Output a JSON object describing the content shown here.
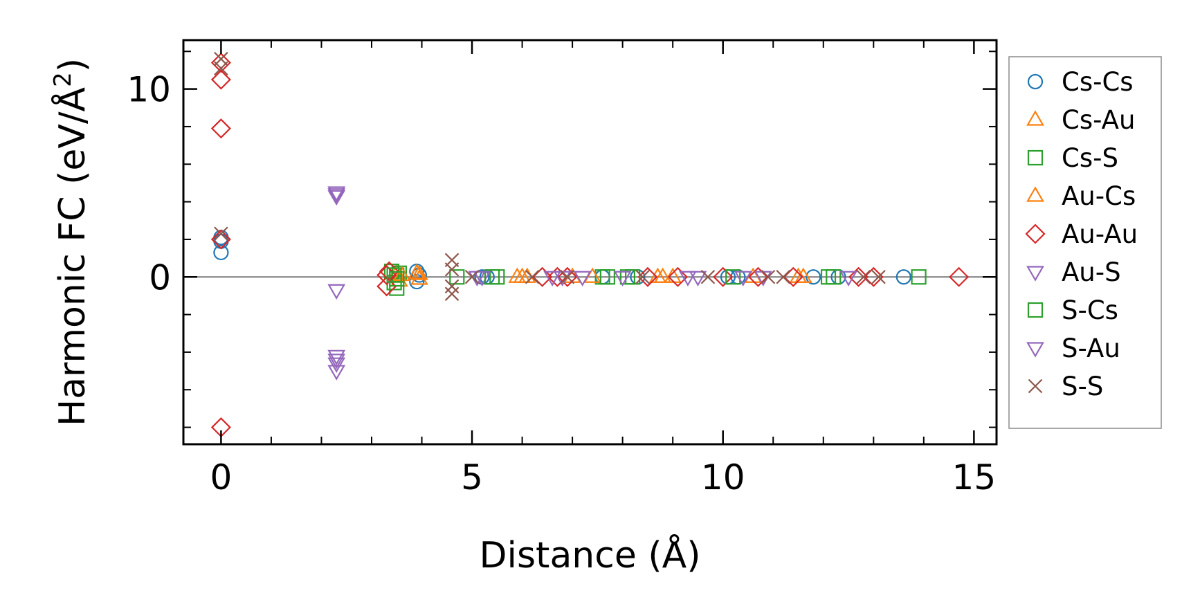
{
  "chart_data": {
    "type": "scatter",
    "title": "",
    "xlabel": "Distance (Å)",
    "ylabel_main": "Harmonic FC (eV/Å",
    "ylabel_sup": "2",
    "ylabel_end": ")",
    "xlim": [
      -0.75,
      15.45
    ],
    "ylim": [
      -8.9,
      12.6
    ],
    "x_ticks": [
      0,
      5,
      10,
      15
    ],
    "x_tick_labels": [
      "0",
      "5",
      "10",
      "15"
    ],
    "y_ticks": [
      0,
      10
    ],
    "y_tick_labels": [
      "0",
      "10"
    ],
    "x_minor_ticks": [
      1,
      2,
      3,
      4,
      6,
      7,
      8,
      9,
      11,
      12,
      13,
      14
    ],
    "y_minor_ticks": [
      -8,
      -6,
      -4,
      -2,
      2,
      4,
      6,
      8,
      12
    ],
    "zero_line": true,
    "grid": false,
    "legend_position": "right outside",
    "series": [
      {
        "name": "Cs-Cs",
        "marker": "circle",
        "color": "#1f77b4",
        "x": [
          0,
          0,
          0,
          3.9,
          3.9,
          3.95,
          5.2,
          5.3,
          7.6,
          8.3,
          10.1,
          10.3,
          11.8,
          12.3,
          13.6
        ],
        "y": [
          1.3,
          1.9,
          2.1,
          0.3,
          -0.25,
          0.1,
          0,
          0,
          0,
          0,
          0,
          0,
          0,
          0,
          0
        ]
      },
      {
        "name": "Cs-Au",
        "marker": "triangle-up",
        "color": "#ff7f0e",
        "x": [
          3.5,
          3.55,
          3.9,
          3.95,
          5.9,
          6.1,
          7.0,
          8.7,
          9.0,
          10.6,
          11.6
        ],
        "y": [
          0.2,
          -0.2,
          0.2,
          -0.1,
          0,
          0,
          0,
          0,
          0,
          0,
          0
        ]
      },
      {
        "name": "Cs-S",
        "marker": "square",
        "color": "#2ca02c",
        "x": [
          3.4,
          3.45,
          3.5,
          3.5,
          3.55,
          4.7,
          5.5,
          7.6,
          8.1,
          12.1,
          13.9
        ],
        "y": [
          0.3,
          -0.3,
          0.1,
          -0.6,
          0.2,
          0,
          0,
          0,
          0,
          0,
          0
        ]
      },
      {
        "name": "Au-Cs",
        "marker": "triangle-up",
        "color": "#ff7f0e",
        "x": [
          3.6,
          3.95,
          6.0,
          7.4,
          8.8,
          11.5
        ],
        "y": [
          0.1,
          0.15,
          0,
          0,
          0,
          0
        ]
      },
      {
        "name": "Au-Au",
        "marker": "diamond",
        "color": "#d62728",
        "x": [
          0,
          0,
          0,
          0,
          0,
          3.3,
          3.3,
          3.35,
          6.4,
          6.7,
          6.9,
          8.5,
          9.1,
          10.0,
          10.7,
          11.4,
          12.7,
          13.0,
          14.7
        ],
        "y": [
          11.4,
          10.5,
          7.9,
          2.0,
          -8.0,
          0.1,
          -0.5,
          0.3,
          0,
          0,
          0,
          0,
          0,
          0,
          0,
          0,
          0,
          0,
          0
        ]
      },
      {
        "name": "Au-S",
        "marker": "triangle-down",
        "color": "#9467bd",
        "x": [
          2.3,
          2.3,
          2.3,
          2.3,
          2.3,
          2.3,
          5.2,
          6.6,
          7.2,
          9.5,
          10.8
        ],
        "y": [
          4.5,
          4.3,
          -0.7,
          -4.2,
          -4.6,
          -5.0,
          0,
          0,
          0,
          0,
          0
        ]
      },
      {
        "name": "S-Cs",
        "marker": "square",
        "color": "#2ca02c",
        "x": [
          3.45,
          3.5,
          5.4,
          7.7,
          8.2,
          10.2,
          12.2
        ],
        "y": [
          0.1,
          -0.1,
          0,
          0,
          0,
          0,
          0
        ]
      },
      {
        "name": "S-Au",
        "marker": "triangle-down",
        "color": "#9467bd",
        "x": [
          2.3,
          2.3,
          5.1,
          6.8,
          8.0,
          9.3,
          10.4,
          12.5
        ],
        "y": [
          4.4,
          -4.4,
          0,
          0,
          0,
          0,
          0,
          0
        ]
      },
      {
        "name": "S-S",
        "marker": "x",
        "color": "#8c564b",
        "x": [
          0,
          0,
          0,
          4.6,
          4.6,
          4.6,
          4.6,
          5.0,
          6.2,
          6.9,
          8.4,
          9.7,
          10.9,
          11.2,
          12.8,
          13.1
        ],
        "y": [
          11.6,
          11.1,
          2.3,
          0.9,
          0.4,
          -0.5,
          -0.9,
          0,
          0,
          0,
          0,
          0,
          0,
          0,
          0,
          0
        ]
      }
    ]
  }
}
